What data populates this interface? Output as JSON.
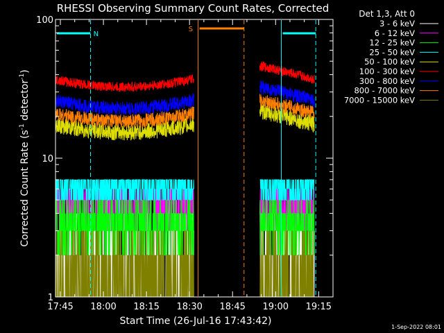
{
  "chart_data": {
    "type": "line",
    "title": "RHESSI Observing Summary Count Rates, Corrected",
    "xlabel": "Start Time (26-Jul-16 17:43:42)",
    "ylabel_main": "Corrected Count Rate (s",
    "ylabel_sup1": "-1",
    "ylabel_mid": " detector",
    "ylabel_sup2": "-1",
    "ylabel_end": ")",
    "ylog": true,
    "xlim_minutes": [
      -1.7,
      95
    ],
    "ylim": [
      1,
      100
    ],
    "x_ticks": [
      {
        "label": "17:45",
        "minute": 0
      },
      {
        "label": "18:00",
        "minute": 15
      },
      {
        "label": "18:15",
        "minute": 30
      },
      {
        "label": "18:30",
        "minute": 45
      },
      {
        "label": "18:45",
        "minute": 60
      },
      {
        "label": "19:00",
        "minute": 75
      },
      {
        "label": "19:15",
        "minute": 90
      }
    ],
    "y_ticks": [
      {
        "label": "1",
        "value": 1
      },
      {
        "label": "10",
        "value": 10
      },
      {
        "label": "100",
        "value": 100
      }
    ],
    "legend_header": "Det 1,3, Att 0",
    "legend_placement": "outside-right",
    "series": [
      {
        "name": "3 - 6 keV",
        "color": "#ffffff",
        "level": 1.6,
        "noise": 0.55,
        "step": true
      },
      {
        "name": "6 - 12 keV",
        "color": "#ff00ff",
        "level": 4.6,
        "noise": 0.15,
        "step": true
      },
      {
        "name": "12 - 25 keV",
        "color": "#00ff00",
        "level": 3.3,
        "noise": 0.2,
        "step": true
      },
      {
        "name": "25 - 50 keV",
        "color": "#00ffff",
        "level": 6.2,
        "noise": 0.14,
        "step": true
      },
      {
        "name": "50 - 100 keV",
        "color": "#dddd00",
        "level": 17.5,
        "noise": 0.06,
        "step": false
      },
      {
        "name": "100 - 300 keV",
        "color": "#ff0000",
        "level": 37,
        "noise": 0.035,
        "step": false
      },
      {
        "name": "300 - 800 keV",
        "color": "#0000ff",
        "level": 26,
        "noise": 0.05,
        "step": false
      },
      {
        "name": "800 - 7000 keV",
        "color": "#ff8000",
        "level": 21,
        "noise": 0.05,
        "step": false
      },
      {
        "name": "7000 - 15000 keV",
        "color": "#808000",
        "level": 1.3,
        "noise": 0.35,
        "step": true
      }
    ],
    "segments": [
      {
        "start": -1.7,
        "end": 46.5
      },
      {
        "start": 69.5,
        "end": 88.5
      }
    ],
    "flags": [
      {
        "label": "N",
        "color": "#00ffff",
        "start": -1.7,
        "end": 10.5,
        "label_minute": 11.5
      },
      {
        "label": "",
        "color": "#00ffff",
        "start": 77,
        "end": 89,
        "label_minute": null
      },
      {
        "label": "S",
        "color": "#ff8000",
        "start": 48,
        "end": 64,
        "label_minute": 46.2
      }
    ],
    "markers": [
      {
        "minute": 10.5,
        "color": "#00ffff",
        "style": "dashed"
      },
      {
        "minute": 48,
        "color": "#ff8000",
        "style": "solid"
      },
      {
        "minute": 64,
        "color": "#ff8000",
        "style": "dashed"
      },
      {
        "minute": 77,
        "color": "#00ffff",
        "style": "solid"
      },
      {
        "minute": 89,
        "color": "#00ffff",
        "style": "dashed"
      }
    ]
  },
  "footer": {
    "timestamp": "1-Sep-2022 08:01"
  }
}
